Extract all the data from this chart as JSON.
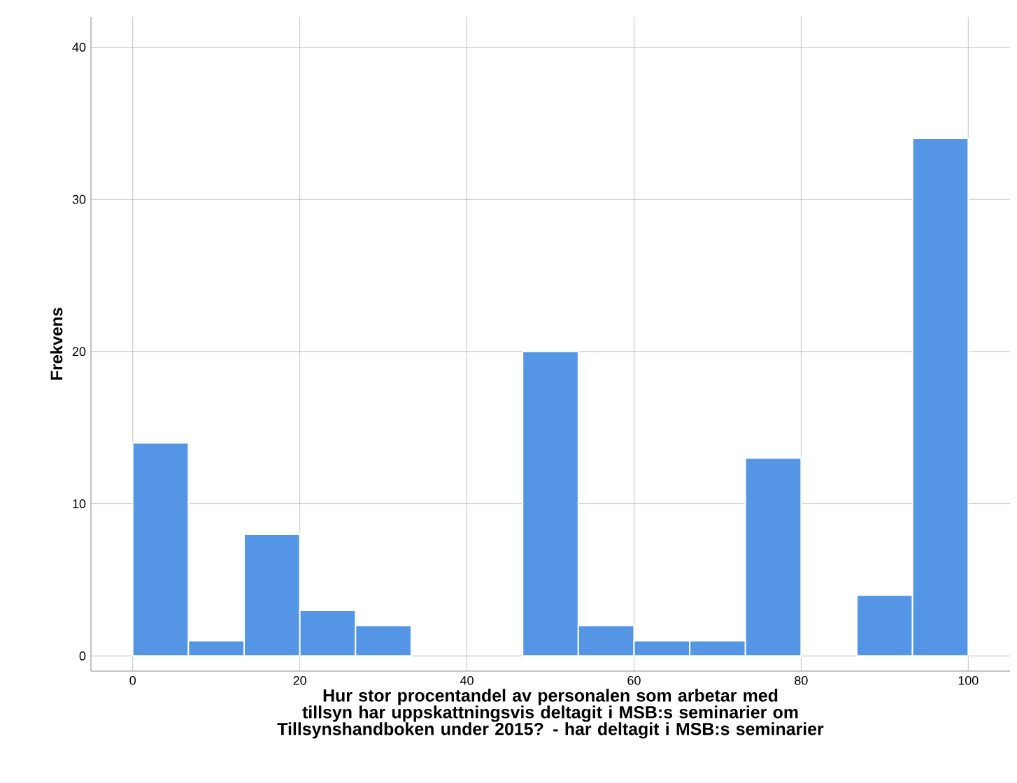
{
  "chart_data": {
    "type": "histogram",
    "xlabel": "Hur stor procentandel av personalen som arbetar med tillsyn har uppskattningsvis deltagit i MSB:s seminarier om Tillsynshandboken under 2015? - har deltagit i MSB:s seminarier",
    "ylabel": "Frekvens",
    "bins": [
      0,
      6.667,
      13.333,
      20,
      26.667,
      33.333,
      40,
      46.667,
      53.333,
      60,
      66.667,
      73.333,
      80,
      86.667,
      93.333,
      100
    ],
    "values": [
      14,
      1,
      8,
      3,
      2,
      0,
      0,
      20,
      2,
      1,
      1,
      13,
      0,
      4,
      34
    ],
    "color": "#5495e6",
    "xlim": [
      -5,
      105
    ],
    "ylim": [
      -1,
      42
    ],
    "xticks": [
      0,
      20,
      40,
      60,
      80,
      100
    ],
    "yticks": [
      0,
      10,
      20,
      30,
      40
    ],
    "grid": true
  }
}
